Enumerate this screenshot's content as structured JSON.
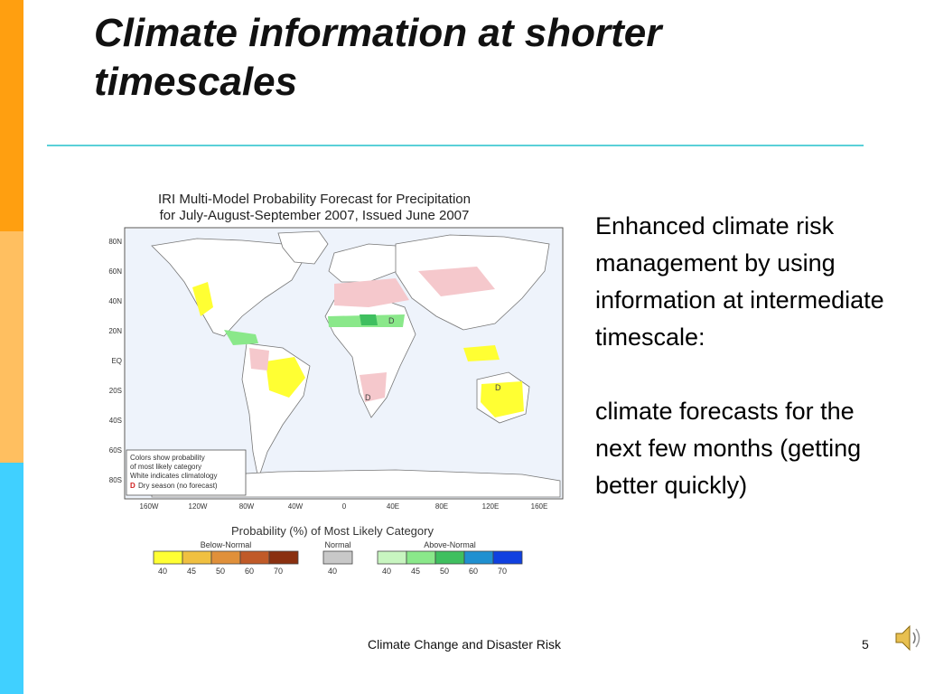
{
  "slide": {
    "title": "Climate information at shorter timescales",
    "body_paragraphs": [
      "Enhanced climate risk management by using information at intermediate timescale:",
      "climate forecasts for the next few months (getting better quickly)"
    ],
    "footer": "Climate Change and Disaster Risk",
    "page_number": "5",
    "speaker_icon": "speaker-icon"
  },
  "figure": {
    "title_line1": "IRI Multi-Model Probability Forecast for Precipitation",
    "title_line2": "for July-August-September 2007, Issued June 2007",
    "lat_labels": [
      "80N",
      "60N",
      "40N",
      "20N",
      "EQ",
      "20S",
      "40S",
      "60S",
      "80S"
    ],
    "lon_labels": [
      "160W",
      "120W",
      "80W",
      "40W",
      "0",
      "40E",
      "80E",
      "120E",
      "160E"
    ],
    "note_lines": [
      "Colors show probability",
      "of most likely category",
      "White indicates climatology",
      "Dry season (no forecast)"
    ],
    "dry_mark": "D",
    "legend_title": "Probability (%) of Most Likely Category",
    "legend_groups": [
      {
        "label": "Below-Normal",
        "colors": [
          "#ffff33",
          "#f0c040",
          "#e0903a",
          "#c05a28",
          "#8a3010"
        ],
        "ticks": [
          "40",
          "45",
          "50",
          "60",
          "70"
        ]
      },
      {
        "label": "Normal",
        "colors": [
          "#c8c8c8"
        ],
        "ticks": [
          "40"
        ]
      },
      {
        "label": "Above-Normal",
        "colors": [
          "#c8f5c0",
          "#8ae88a",
          "#3fbf5f",
          "#2090d0",
          "#1040e0"
        ],
        "ticks": [
          "40",
          "45",
          "50",
          "60",
          "70"
        ]
      }
    ]
  }
}
